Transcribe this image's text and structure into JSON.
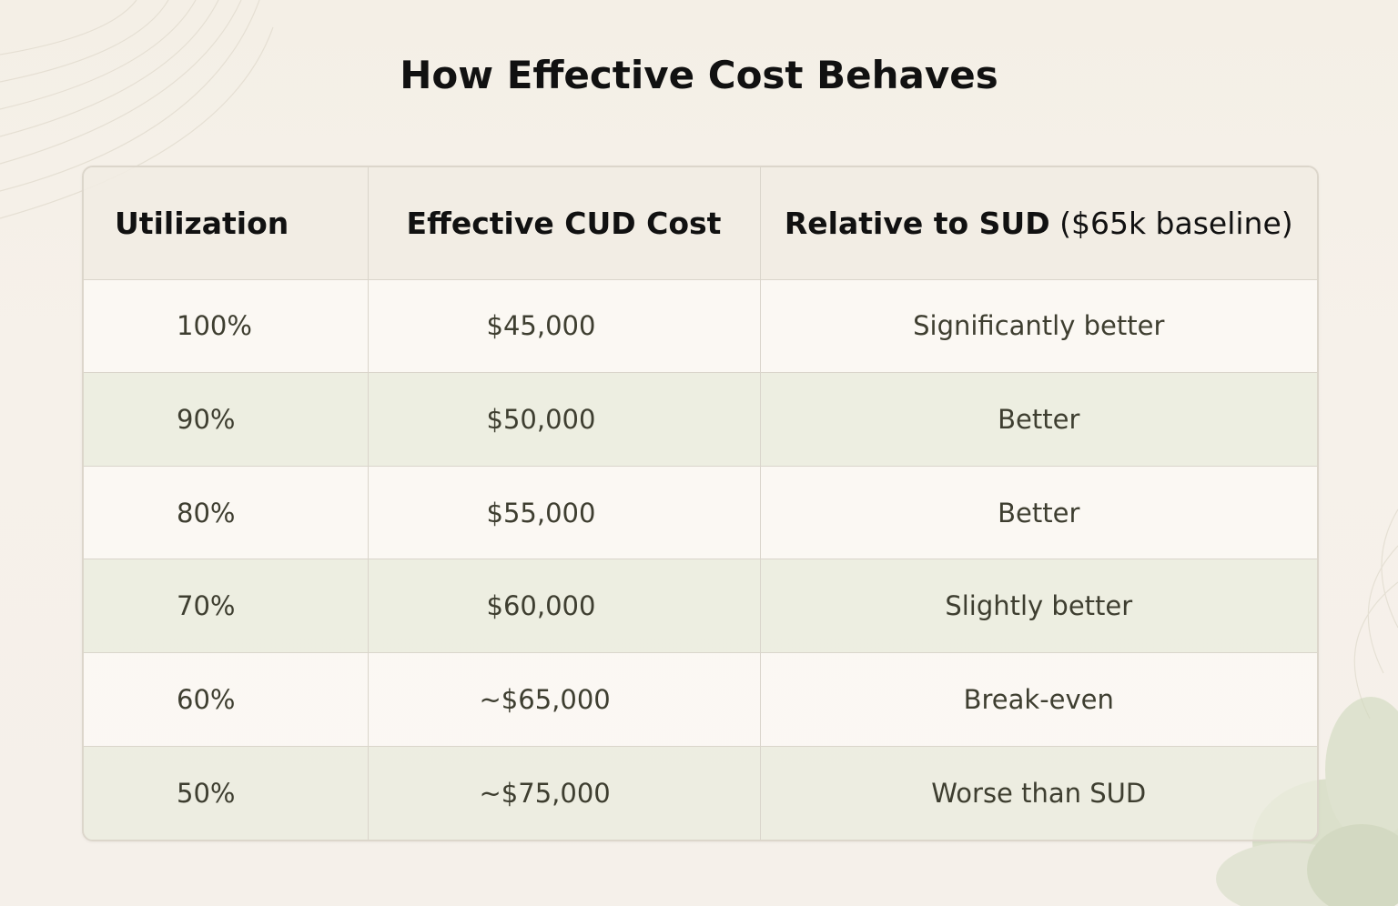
{
  "title": "How Effective Cost Behaves",
  "table": {
    "headers": {
      "utilization": "Utilization",
      "cost": "Effective CUD Cost",
      "relative_bold": "Relative to SUD",
      "relative_normal": " ($65k baseline)"
    },
    "rows": [
      {
        "utilization": "100%",
        "cost": "$45,000",
        "relative": "Significantly better"
      },
      {
        "utilization": "90%",
        "cost": "$50,000",
        "relative": "Better"
      },
      {
        "utilization": "80%",
        "cost": "$55,000",
        "relative": "Better"
      },
      {
        "utilization": "70%",
        "cost": "$60,000",
        "relative": "Slightly better"
      },
      {
        "utilization": "60%",
        "cost": "~$65,000",
        "relative": "Break-even"
      },
      {
        "utilization": "50%",
        "cost": "~$75,000",
        "relative": "Worse than SUD"
      }
    ]
  },
  "colors": {
    "background": "#f5f0e8",
    "header_bg": "#efe8de",
    "alt_row_bg": "#e5e9d7",
    "text_dark": "#111111",
    "text_body": "#3e3e30",
    "border": "#dad5cb"
  }
}
